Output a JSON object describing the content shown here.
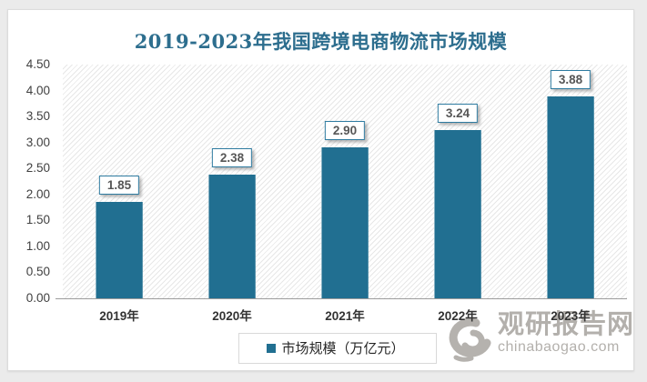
{
  "title": "2019-2023年我国跨境电商物流市场规模",
  "colors": {
    "bar": "#216f91",
    "title": "#2d6e8e",
    "value_label_border": "#2e7ba0",
    "watermark": "#b3b0ac"
  },
  "chart_data": {
    "type": "bar",
    "title": "2019-2023年我国跨境电商物流市场规模",
    "categories": [
      "2019年",
      "2020年",
      "2021年",
      "2022年",
      "2023年"
    ],
    "values": [
      1.85,
      2.38,
      2.9,
      3.24,
      3.88
    ],
    "bar_labels": [
      "1.85",
      "2.38",
      "2.90",
      "3.24",
      "3.88"
    ],
    "xlabel": "",
    "ylabel": "",
    "ylim": [
      0,
      4.5
    ],
    "ytick_step": 0.5,
    "yticks": [
      "4.50",
      "4.00",
      "3.50",
      "3.00",
      "2.50",
      "2.00",
      "1.50",
      "1.00",
      "0.50",
      "0.00"
    ],
    "grid": false,
    "plot_background": "diagonal-hatch",
    "legend_entries": [
      "市场规模（万亿元）"
    ],
    "legend_position": "bottom-center"
  },
  "legend": {
    "label": "市场规模（万亿元）"
  },
  "watermark": {
    "site_name": "观研报告网",
    "site_url": "chinabaogao.com",
    "logo": "swirl-logo"
  }
}
